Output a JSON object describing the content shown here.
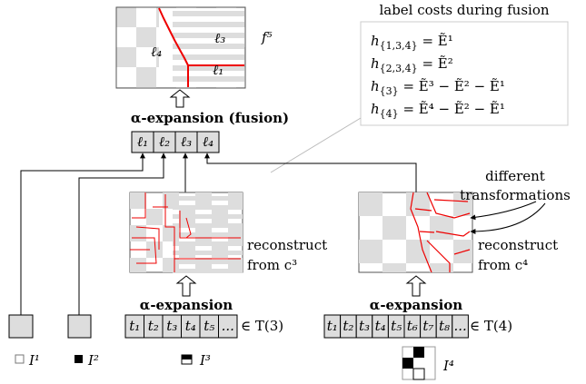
{
  "top": {
    "labels": [
      "ℓ₄",
      "ℓ₃",
      "ℓ₁"
    ],
    "f": "f⁵"
  },
  "costs": {
    "title": "label costs during fusion",
    "lines": [
      {
        "base": "h",
        "sub": "{1,3,4}",
        "rhs": " = Ẽ¹"
      },
      {
        "base": "h",
        "sub": "{2,3,4}",
        "rhs": " = Ẽ²"
      },
      {
        "base": "h",
        "sub": "{3}",
        "rhs": " = Ẽ³ − Ẽ² − Ẽ¹"
      },
      {
        "base": "h",
        "sub": "{4}",
        "rhs": " = Ẽ⁴ − Ẽ² − Ẽ¹"
      }
    ]
  },
  "fusion": {
    "title": "α-expansion (fusion)",
    "labels": [
      "ℓ₁",
      "ℓ₂",
      "ℓ₃",
      "ℓ₄"
    ]
  },
  "middle": {
    "caption": [
      "reconstruct",
      "from c³"
    ],
    "title": "α-expansion",
    "cells": [
      "t₁",
      "t₂",
      "t₃",
      "t₄",
      "t₅",
      "..."
    ],
    "set": "∈ T(3)"
  },
  "right": {
    "note": [
      "different",
      "transformations"
    ],
    "caption": [
      "reconstruct",
      "from c⁴"
    ],
    "title": "α-expansion",
    "cells": [
      "t₁",
      "t₂",
      "t₃",
      "t₄",
      "t₅",
      "t₆",
      "t₇",
      "t₈",
      "..."
    ],
    "set": "∈ T(4)"
  },
  "inputs": [
    "I¹",
    "I²",
    "I³",
    "I⁴"
  ]
}
